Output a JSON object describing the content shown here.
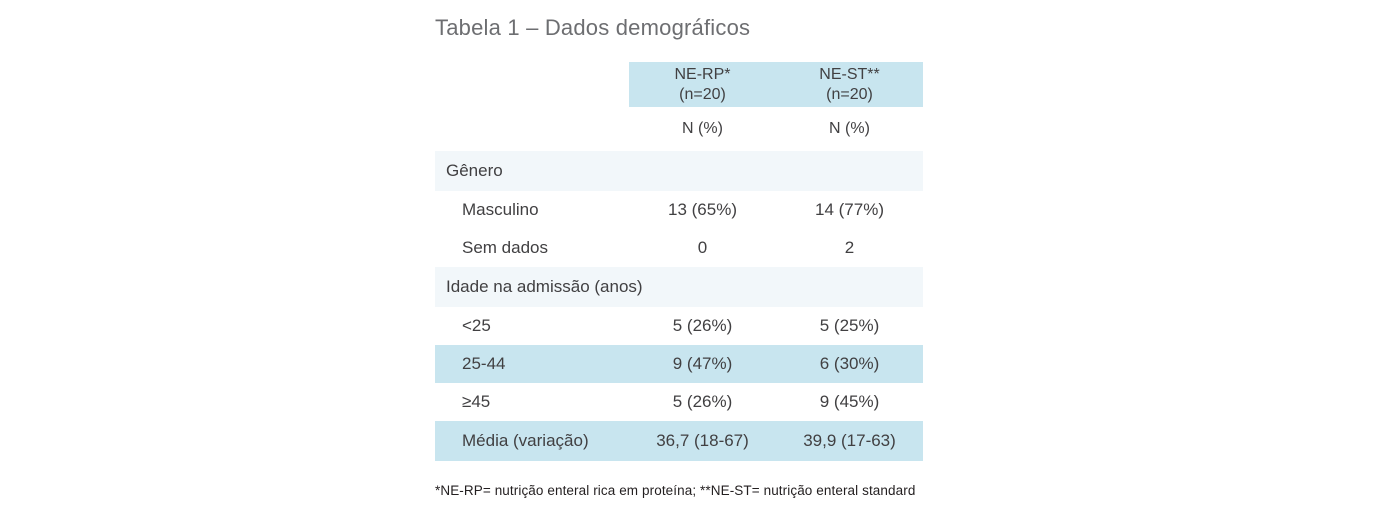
{
  "title": "Tabela 1 – Dados demográficos",
  "table": {
    "columns": [
      {
        "label": "NE-RP*",
        "sub": "(n=20)",
        "measure": "N (%)"
      },
      {
        "label": "NE-ST**",
        "sub": "(n=20)",
        "measure": "N (%)"
      }
    ],
    "rows": [
      {
        "type": "section",
        "label": "Gênero"
      },
      {
        "type": "data",
        "label": "Masculino",
        "values": [
          "13 (65%)",
          "14 (77%)"
        ],
        "highlight": false
      },
      {
        "type": "data",
        "label": "Sem dados",
        "values": [
          "0",
          "2"
        ],
        "highlight": false
      },
      {
        "type": "section",
        "label": "Idade na admissão (anos)"
      },
      {
        "type": "data",
        "label": "<25",
        "values": [
          "5 (26%)",
          "5 (25%)"
        ],
        "highlight": false
      },
      {
        "type": "data",
        "label": "25-44",
        "values": [
          "9 (47%)",
          "6 (30%)"
        ],
        "highlight": true
      },
      {
        "type": "data",
        "label": "≥45",
        "values": [
          "5 (26%)",
          "9 (45%)"
        ],
        "highlight": false
      },
      {
        "type": "data",
        "label": "Média (variação)",
        "values": [
          "36,7 (18-67)",
          "39,9 (17-63)"
        ],
        "highlight": true
      }
    ]
  },
  "footnote": "*NE-RP= nutrição enteral rica em proteína; **NE-ST= nutrição enteral standard",
  "colors": {
    "header_blue": "#c8e5ef",
    "section_blue": "#f2f7fa",
    "title_gray": "#6d6e71",
    "body_text": "#414042",
    "footnote_text": "#231f20",
    "page_bg": "#ffffff"
  },
  "chart_data": {
    "type": "table",
    "title": "Tabela 1 – Dados demográficos",
    "columns": [
      "",
      "NE-RP* (n=20) N (%)",
      "NE-ST** (n=20) N (%)"
    ],
    "rows": [
      [
        "Gênero",
        "",
        ""
      ],
      [
        "Masculino",
        "13 (65%)",
        "14 (77%)"
      ],
      [
        "Sem dados",
        "0",
        "2"
      ],
      [
        "Idade na admissão (anos)",
        "",
        ""
      ],
      [
        "<25",
        "5 (26%)",
        "5 (25%)"
      ],
      [
        "25-44",
        "9 (47%)",
        "6 (30%)"
      ],
      [
        "≥45",
        "5 (26%)",
        "9 (45%)"
      ],
      [
        "Média (variação)",
        "36,7 (18-67)",
        "39,9 (17-63)"
      ]
    ]
  }
}
